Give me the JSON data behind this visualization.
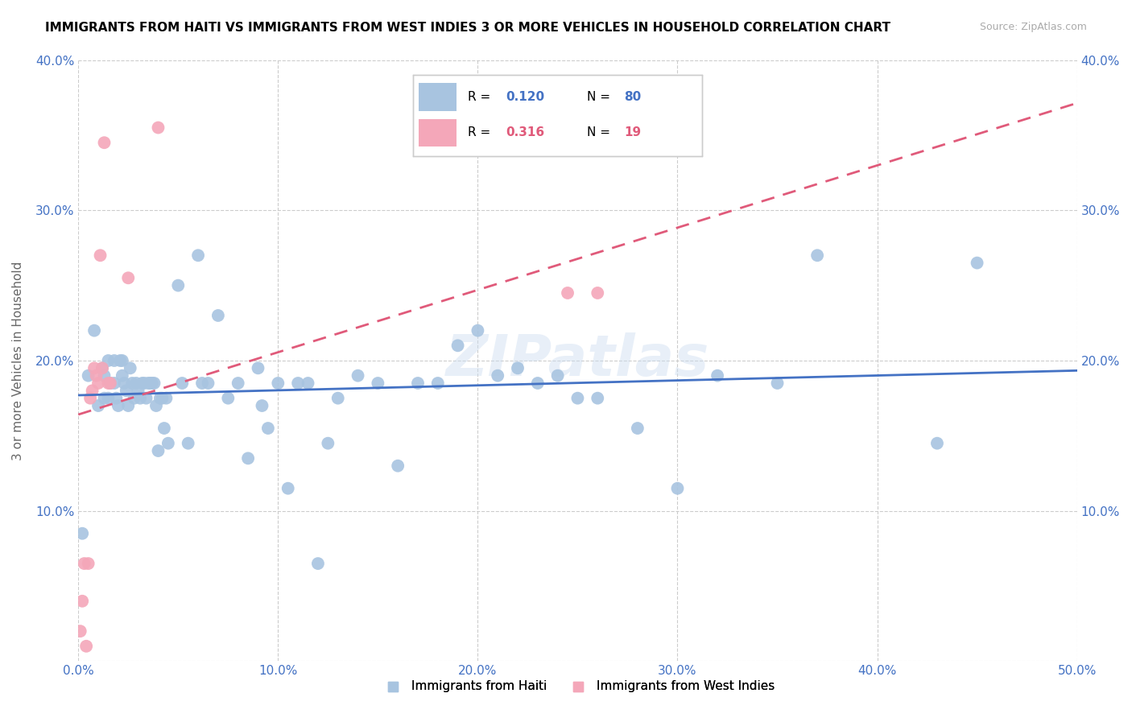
{
  "title": "IMMIGRANTS FROM HAITI VS IMMIGRANTS FROM WEST INDIES 3 OR MORE VEHICLES IN HOUSEHOLD CORRELATION CHART",
  "source": "Source: ZipAtlas.com",
  "ylabel": "3 or more Vehicles in Household",
  "xlim": [
    0.0,
    0.5
  ],
  "ylim": [
    0.0,
    0.4
  ],
  "xticks": [
    0.0,
    0.1,
    0.2,
    0.3,
    0.4,
    0.5
  ],
  "yticks": [
    0.0,
    0.1,
    0.2,
    0.3,
    0.4
  ],
  "xticklabels": [
    "0.0%",
    "10.0%",
    "20.0%",
    "30.0%",
    "40.0%",
    "50.0%"
  ],
  "yticklabels_left": [
    "",
    "10.0%",
    "20.0%",
    "30.0%",
    "40.0%"
  ],
  "yticklabels_right": [
    "",
    "10.0%",
    "20.0%",
    "30.0%",
    "40.0%"
  ],
  "legend1_label": "Immigrants from Haiti",
  "legend2_label": "Immigrants from West Indies",
  "legend_R1": "0.120",
  "legend_N1": "80",
  "legend_R2": "0.316",
  "legend_N2": "19",
  "color_haiti": "#a8c4e0",
  "color_westindies": "#f4a7b9",
  "color_line_haiti": "#4472c4",
  "color_line_westindies": "#e05a7a",
  "color_axis_labels": "#4472c4",
  "color_grid": "#cccccc",
  "watermark": "ZIPatlas",
  "haiti_x": [
    0.002,
    0.005,
    0.008,
    0.01,
    0.012,
    0.013,
    0.013,
    0.015,
    0.015,
    0.016,
    0.018,
    0.018,
    0.019,
    0.02,
    0.021,
    0.022,
    0.022,
    0.023,
    0.024,
    0.025,
    0.026,
    0.027,
    0.028,
    0.029,
    0.03,
    0.031,
    0.032,
    0.033,
    0.034,
    0.035,
    0.036,
    0.037,
    0.038,
    0.039,
    0.04,
    0.041,
    0.042,
    0.043,
    0.044,
    0.045,
    0.05,
    0.052,
    0.055,
    0.06,
    0.062,
    0.065,
    0.07,
    0.075,
    0.08,
    0.085,
    0.09,
    0.092,
    0.095,
    0.1,
    0.105,
    0.11,
    0.115,
    0.12,
    0.125,
    0.13,
    0.14,
    0.15,
    0.16,
    0.17,
    0.18,
    0.19,
    0.2,
    0.21,
    0.22,
    0.23,
    0.24,
    0.25,
    0.26,
    0.28,
    0.3,
    0.32,
    0.35,
    0.37,
    0.43,
    0.45
  ],
  "haiti_y": [
    0.085,
    0.19,
    0.22,
    0.17,
    0.195,
    0.19,
    0.175,
    0.2,
    0.175,
    0.185,
    0.2,
    0.185,
    0.175,
    0.17,
    0.2,
    0.19,
    0.2,
    0.185,
    0.18,
    0.17,
    0.195,
    0.185,
    0.175,
    0.185,
    0.18,
    0.175,
    0.185,
    0.185,
    0.175,
    0.185,
    0.185,
    0.185,
    0.185,
    0.17,
    0.14,
    0.175,
    0.175,
    0.155,
    0.175,
    0.145,
    0.25,
    0.185,
    0.145,
    0.27,
    0.185,
    0.185,
    0.23,
    0.175,
    0.185,
    0.135,
    0.195,
    0.17,
    0.155,
    0.185,
    0.115,
    0.185,
    0.185,
    0.065,
    0.145,
    0.175,
    0.19,
    0.185,
    0.13,
    0.185,
    0.185,
    0.21,
    0.22,
    0.19,
    0.195,
    0.185,
    0.19,
    0.175,
    0.175,
    0.155,
    0.115,
    0.19,
    0.185,
    0.27,
    0.145,
    0.265
  ],
  "westindies_x": [
    0.001,
    0.002,
    0.003,
    0.004,
    0.005,
    0.006,
    0.007,
    0.008,
    0.009,
    0.01,
    0.011,
    0.012,
    0.013,
    0.015,
    0.016,
    0.025,
    0.04,
    0.245,
    0.26
  ],
  "westindies_y": [
    0.02,
    0.04,
    0.065,
    0.01,
    0.065,
    0.175,
    0.18,
    0.195,
    0.19,
    0.185,
    0.27,
    0.195,
    0.345,
    0.185,
    0.185,
    0.255,
    0.355,
    0.245,
    0.245
  ]
}
